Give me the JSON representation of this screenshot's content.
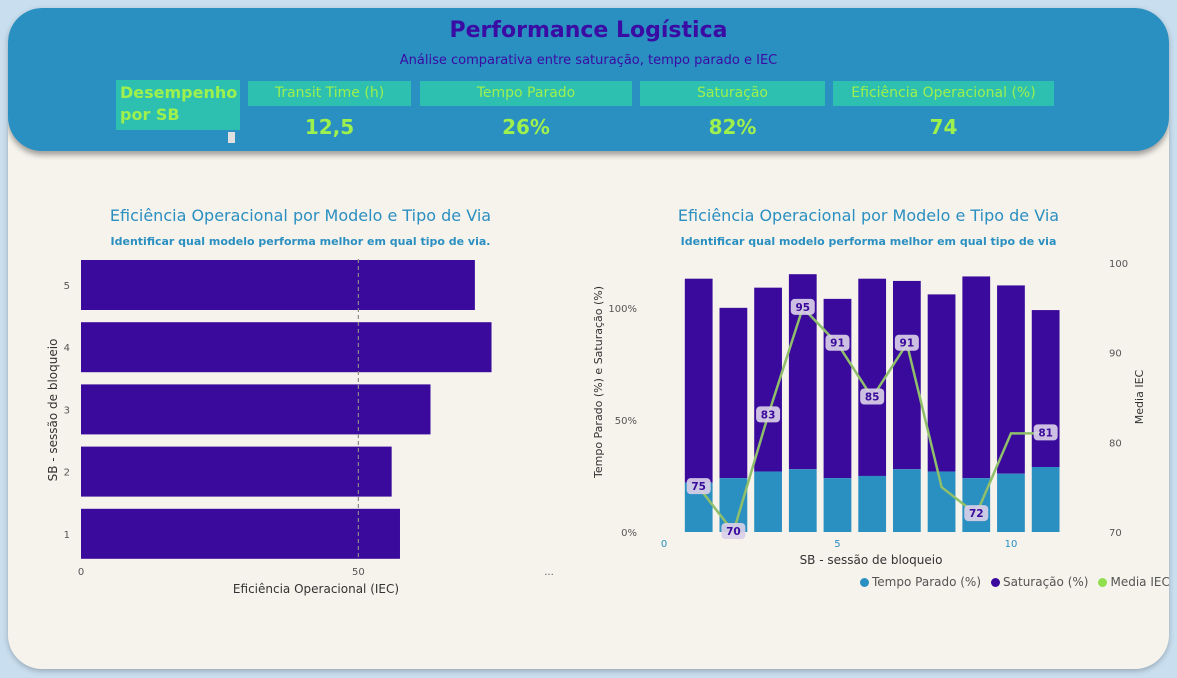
{
  "header": {
    "title": "Performance Logística",
    "subtitle": "Análise comparativa entre saturação, tempo parado e IEC",
    "sb_label": "Desempenho por SB"
  },
  "kpis": [
    {
      "label": "Transit Time (h)",
      "value": "12,5"
    },
    {
      "label": "Tempo Parado",
      "value": "26%"
    },
    {
      "label": "Saturação",
      "value": "82%"
    },
    {
      "label": "Eficiência Operacional (%)",
      "value": "74"
    }
  ],
  "left_chart": {
    "title": "Eficiência Operacional por Modelo e Tipo de Via",
    "subtitle": "Identificar qual modelo performa melhor em qual tipo de via.",
    "more": "..."
  },
  "right_chart": {
    "title": "Eficiência Operacional por Modelo e Tipo de Via",
    "subtitle": "Identificar qual modelo performa melhor em qual tipo de via"
  },
  "colors": {
    "tempo_parado": "#2a8fc1",
    "saturacao": "#3a0a9c",
    "media_iec": "#8fbf6a"
  },
  "chart_data": [
    {
      "type": "bar",
      "orientation": "horizontal",
      "categories": [
        "5",
        "4",
        "3",
        "2",
        "1"
      ],
      "values": [
        71,
        74,
        63,
        56,
        57.5
      ],
      "xlabel": "Eficiência Operacional (IEC)",
      "ylabel": "SB - sessão de bloqueio",
      "xlim": [
        0,
        84
      ],
      "xticks": [
        "0",
        "50"
      ],
      "reference_line": 50,
      "grid": false
    },
    {
      "type": "bar",
      "stacked": true,
      "x": [
        1,
        2,
        3,
        4,
        5,
        6,
        7,
        8,
        9,
        10,
        11
      ],
      "xticks": [
        "0",
        "5",
        "10"
      ],
      "xlabel": "SB - sessão de bloqueio",
      "ylabel": "Tempo Parado (%) e Saturação (%)",
      "y2label": "Media IEC",
      "ylim": [
        0,
        1.2
      ],
      "yticks": [
        "0%",
        "50%",
        "100%"
      ],
      "y2lim": [
        70,
        100
      ],
      "y2ticks": [
        "70",
        "80",
        "90",
        "100"
      ],
      "legend_position": "bottom-right",
      "series": [
        {
          "name": "Tempo Parado (%)",
          "values": [
            0.22,
            0.24,
            0.27,
            0.28,
            0.24,
            0.25,
            0.28,
            0.27,
            0.24,
            0.26,
            0.29
          ]
        },
        {
          "name": "Saturação (%)",
          "values": [
            0.91,
            0.76,
            0.82,
            0.87,
            0.8,
            0.88,
            0.84,
            0.79,
            0.9,
            0.84,
            0.7
          ]
        },
        {
          "name": "Media IEC",
          "type": "line",
          "values": [
            75,
            70,
            83,
            95,
            91,
            85,
            91,
            75,
            72,
            81,
            81
          ],
          "labels": [
            "75",
            "70",
            "83",
            "95",
            "91",
            "85",
            "91",
            "",
            "72",
            "",
            "81"
          ]
        }
      ]
    }
  ]
}
